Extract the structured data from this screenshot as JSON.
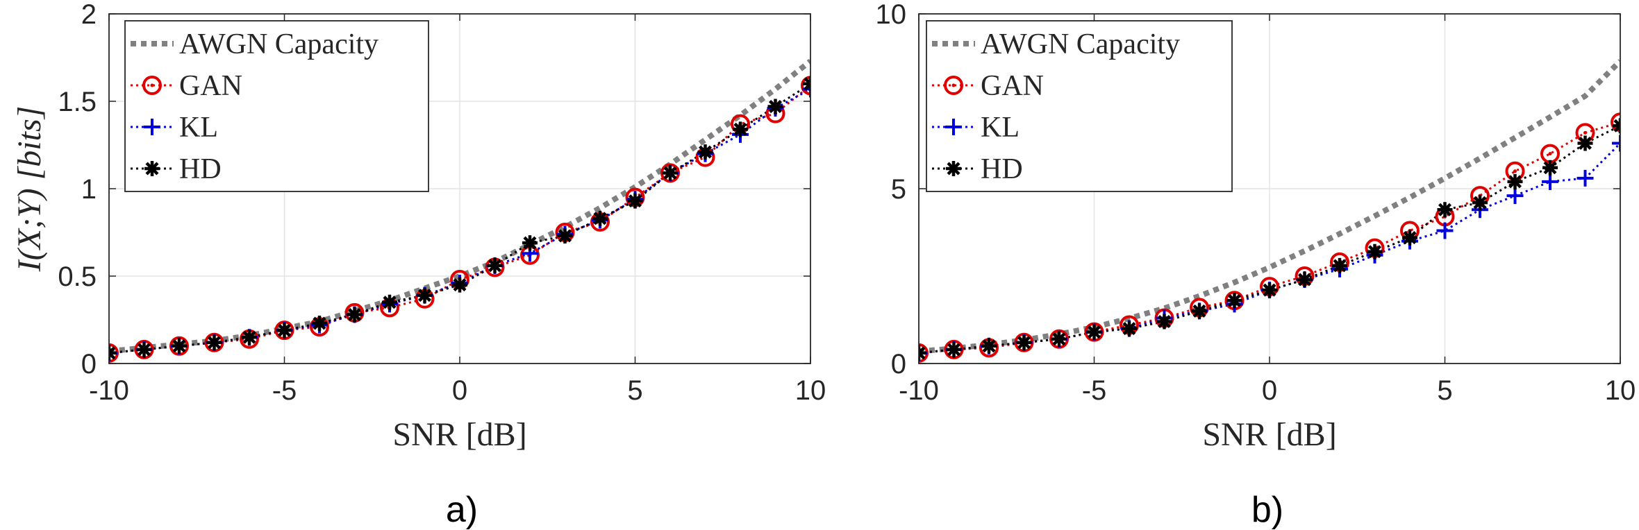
{
  "chart_data": [
    {
      "type": "line",
      "panel_label": "a)",
      "xlabel": "SNR [dB]",
      "ylabel": "I(X;Y) [bits]",
      "xlim": [
        -10,
        10
      ],
      "ylim": [
        0,
        2
      ],
      "xticks": [
        -10,
        -5,
        0,
        5,
        10
      ],
      "yticks": [
        0,
        0.5,
        1,
        1.5,
        2
      ],
      "grid": true,
      "legend_position": "top-left",
      "x": [
        -10,
        -9,
        -8,
        -7,
        -6,
        -5,
        -4,
        -3,
        -2,
        -1,
        0,
        1,
        2,
        3,
        4,
        5,
        6,
        7,
        8,
        9,
        10
      ],
      "series": [
        {
          "name": "AWGN Capacity",
          "color": "#808080",
          "marker": "none",
          "line": "dotted-thick",
          "values": [
            0.07,
            0.09,
            0.11,
            0.13,
            0.16,
            0.2,
            0.24,
            0.3,
            0.36,
            0.43,
            0.5,
            0.58,
            0.68,
            0.78,
            0.89,
            1.01,
            1.14,
            1.28,
            1.42,
            1.57,
            1.73
          ]
        },
        {
          "name": "GAN",
          "color": "#e00000",
          "marker": "circle-dot",
          "line": "dotted",
          "values": [
            0.06,
            0.08,
            0.1,
            0.12,
            0.14,
            0.19,
            0.21,
            0.29,
            0.32,
            0.37,
            0.48,
            0.55,
            0.62,
            0.75,
            0.81,
            0.95,
            1.09,
            1.18,
            1.37,
            1.43,
            1.59
          ]
        },
        {
          "name": "KL",
          "color": "#0000e0",
          "marker": "plus",
          "line": "dotted",
          "values": [
            0.06,
            0.08,
            0.1,
            0.12,
            0.15,
            0.19,
            0.22,
            0.28,
            0.34,
            0.39,
            0.46,
            0.56,
            0.63,
            0.74,
            0.82,
            0.94,
            1.09,
            1.2,
            1.31,
            1.46,
            1.57
          ]
        },
        {
          "name": "HD",
          "color": "#000000",
          "marker": "asterisk",
          "line": "dotted",
          "values": [
            0.06,
            0.08,
            0.1,
            0.12,
            0.15,
            0.19,
            0.23,
            0.28,
            0.35,
            0.39,
            0.45,
            0.56,
            0.69,
            0.73,
            0.83,
            0.93,
            1.09,
            1.21,
            1.34,
            1.47,
            1.6
          ]
        }
      ]
    },
    {
      "type": "line",
      "panel_label": "b)",
      "xlabel": "SNR [dB]",
      "ylabel": "",
      "xlim": [
        -10,
        10
      ],
      "ylim": [
        0,
        10
      ],
      "xticks": [
        -10,
        -5,
        0,
        5,
        10
      ],
      "yticks": [
        0,
        5,
        10
      ],
      "grid": true,
      "legend_position": "top-left",
      "x": [
        -10,
        -9,
        -8,
        -7,
        -6,
        -5,
        -4,
        -3,
        -2,
        -1,
        0,
        1,
        2,
        3,
        4,
        5,
        6,
        7,
        8,
        9,
        10
      ],
      "series": [
        {
          "name": "AWGN Capacity",
          "color": "#808080",
          "marker": "none",
          "line": "dotted-thick",
          "values": [
            0.35,
            0.43,
            0.54,
            0.67,
            0.84,
            1.04,
            1.29,
            1.58,
            1.93,
            2.32,
            2.75,
            3.22,
            3.71,
            4.22,
            4.75,
            5.3,
            5.87,
            6.46,
            7.05,
            7.65,
            8.65
          ]
        },
        {
          "name": "GAN",
          "color": "#e00000",
          "marker": "circle-dot",
          "line": "dotted",
          "values": [
            0.3,
            0.4,
            0.45,
            0.6,
            0.7,
            0.9,
            1.1,
            1.3,
            1.6,
            1.8,
            2.2,
            2.5,
            2.9,
            3.3,
            3.8,
            4.2,
            4.8,
            5.5,
            6.0,
            6.6,
            6.9
          ]
        },
        {
          "name": "KL",
          "color": "#0000e0",
          "marker": "plus",
          "line": "dotted",
          "values": [
            0.3,
            0.4,
            0.5,
            0.6,
            0.7,
            0.9,
            1.0,
            1.3,
            1.5,
            1.7,
            2.1,
            2.4,
            2.7,
            3.1,
            3.5,
            3.8,
            4.4,
            4.8,
            5.2,
            5.3,
            6.3
          ]
        },
        {
          "name": "HD",
          "color": "#000000",
          "marker": "asterisk",
          "line": "dotted",
          "values": [
            0.3,
            0.4,
            0.5,
            0.6,
            0.7,
            0.9,
            1.0,
            1.2,
            1.5,
            1.8,
            2.1,
            2.4,
            2.8,
            3.2,
            3.6,
            4.4,
            4.6,
            5.2,
            5.6,
            6.3,
            6.8
          ]
        }
      ]
    }
  ]
}
